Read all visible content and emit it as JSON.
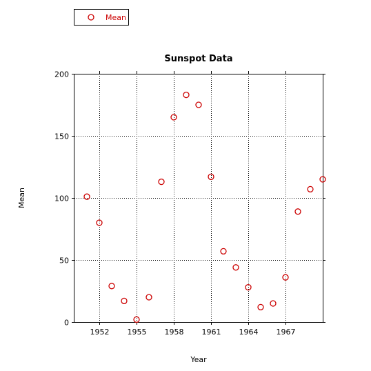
{
  "chart_data": {
    "type": "scatter",
    "title": "Sunspot Data",
    "xlabel": "Year",
    "ylabel": "Mean",
    "xlim": [
      1950,
      1970
    ],
    "ylim": [
      0,
      200
    ],
    "xticks": [
      1952,
      1955,
      1958,
      1961,
      1964,
      1967
    ],
    "yticks": [
      0,
      50,
      100,
      150,
      200
    ],
    "grid": true,
    "legend_placement": "top-left",
    "series": [
      {
        "name": "Mean",
        "color": "#cc0000",
        "marker": "circle-open",
        "points": [
          {
            "x": 1951,
            "y": 101
          },
          {
            "x": 1952,
            "y": 80
          },
          {
            "x": 1953,
            "y": 29
          },
          {
            "x": 1954,
            "y": 17
          },
          {
            "x": 1955,
            "y": 2
          },
          {
            "x": 1956,
            "y": 20
          },
          {
            "x": 1957,
            "y": 113
          },
          {
            "x": 1958,
            "y": 165
          },
          {
            "x": 1959,
            "y": 183
          },
          {
            "x": 1960,
            "y": 175
          },
          {
            "x": 1961,
            "y": 117
          },
          {
            "x": 1962,
            "y": 57
          },
          {
            "x": 1963,
            "y": 44
          },
          {
            "x": 1964,
            "y": 28
          },
          {
            "x": 1965,
            "y": 12
          },
          {
            "x": 1966,
            "y": 15
          },
          {
            "x": 1967,
            "y": 36
          },
          {
            "x": 1968,
            "y": 89
          },
          {
            "x": 1969,
            "y": 107
          },
          {
            "x": 1970,
            "y": 115
          }
        ]
      }
    ]
  }
}
